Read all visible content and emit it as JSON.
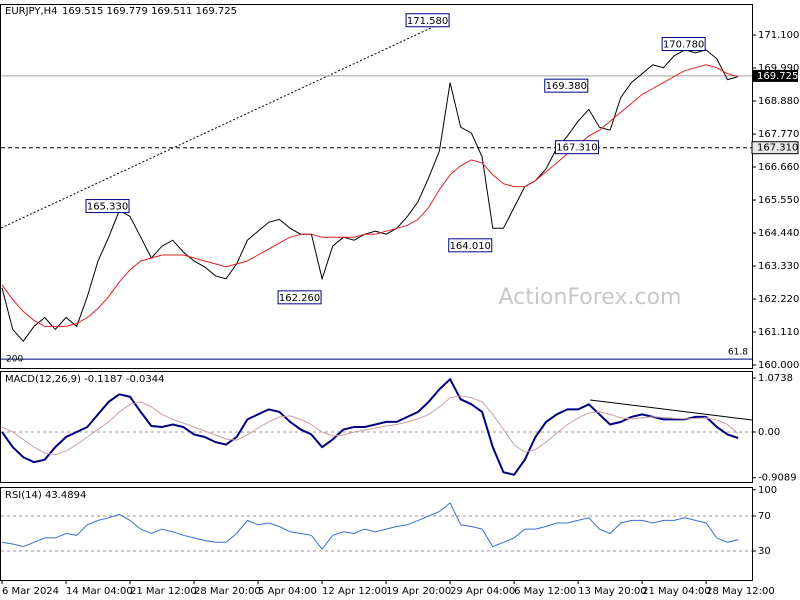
{
  "chart_data": [
    {
      "type": "line",
      "title": "EURJPY,H4",
      "subtitle": "169.515 169.779 169.511 169.725",
      "watermark": "ActionForex.com",
      "x": [
        0,
        1,
        2,
        3,
        4,
        5,
        6,
        7,
        8,
        9,
        10,
        11,
        12,
        13,
        14,
        15,
        16,
        17,
        18,
        19,
        20,
        21,
        22,
        23,
        24,
        25,
        26,
        27,
        28,
        29,
        30,
        31,
        32,
        33,
        34,
        35,
        36,
        37,
        38,
        39,
        40,
        41,
        42,
        43,
        44,
        45,
        46,
        47,
        48,
        49,
        50,
        51,
        52,
        53,
        54,
        55,
        56,
        57,
        58,
        59,
        60,
        61,
        62,
        63,
        64,
        65,
        66,
        67,
        68,
        69
      ],
      "xlim": [
        0,
        70.3
      ],
      "ylim": [
        159.9,
        172.11
      ],
      "yticks": [
        {
          "value": 171.1,
          "label": "171.100"
        },
        {
          "value": 169.99,
          "label": "169.990"
        },
        {
          "value": 168.88,
          "label": "168.880"
        },
        {
          "value": 167.77,
          "label": "167.770"
        },
        {
          "value": 166.66,
          "label": "166.660"
        },
        {
          "value": 165.55,
          "label": "165.550"
        },
        {
          "value": 164.44,
          "label": "164.440"
        },
        {
          "value": 163.33,
          "label": "163.330"
        },
        {
          "value": 162.22,
          "label": "162.220"
        },
        {
          "value": 161.11,
          "label": "161.110"
        },
        {
          "value": 160,
          "label": "160.000"
        }
      ],
      "series": [
        {
          "color": "#000000",
          "values": [
            162.6,
            161.2,
            160.8,
            161.3,
            161.6,
            161.2,
            161.6,
            161.3,
            162.3,
            163.5,
            164.3,
            165.2,
            165.0,
            164.3,
            163.6,
            164.0,
            164.2,
            163.8,
            163.5,
            163.3,
            163.0,
            162.9,
            163.4,
            164.2,
            164.5,
            164.8,
            164.9,
            164.6,
            164.4,
            164.4,
            162.9,
            164.0,
            164.3,
            164.2,
            164.4,
            164.5,
            164.4,
            164.6,
            165.0,
            165.5,
            166.3,
            167.2,
            169.5,
            168.0,
            167.8,
            167.0,
            164.6,
            164.6,
            165.3,
            166.0,
            166.2,
            166.6,
            167.3,
            167.7,
            168.2,
            168.6,
            168.0,
            167.9,
            169.0,
            169.5,
            169.8,
            170.1,
            170.0,
            170.4,
            170.6,
            170.5,
            170.6,
            170.3,
            169.6,
            169.7
          ]
        },
        {
          "color": "#e02020",
          "values": [
            162.7,
            162.2,
            161.8,
            161.5,
            161.3,
            161.3,
            161.3,
            161.4,
            161.6,
            161.9,
            162.3,
            162.8,
            163.2,
            163.5,
            163.6,
            163.7,
            163.7,
            163.7,
            163.6,
            163.5,
            163.4,
            163.3,
            163.4,
            163.5,
            163.7,
            163.9,
            164.1,
            164.3,
            164.4,
            164.4,
            164.3,
            164.3,
            164.3,
            164.3,
            164.4,
            164.4,
            164.5,
            164.6,
            164.7,
            164.9,
            165.3,
            165.9,
            166.4,
            166.7,
            166.9,
            166.8,
            166.4,
            166.1,
            166.0,
            166.0,
            166.2,
            166.5,
            166.8,
            167.1,
            167.4,
            167.7,
            167.9,
            168.2,
            168.5,
            168.8,
            169.1,
            169.3,
            169.5,
            169.7,
            169.9,
            170.0,
            170.1,
            170.0,
            169.8,
            169.7
          ]
        }
      ],
      "annotations": [
        {
          "value": 171.58,
          "label": "171.580",
          "x": 42
        },
        {
          "value": 170.78,
          "label": "170.780",
          "x": 66
        },
        {
          "value": 169.38,
          "label": "169.380",
          "x": 55
        },
        {
          "value": 167.31,
          "label": "167.310",
          "x": 56
        },
        {
          "value": 165.33,
          "label": "165.330",
          "x": 12
        },
        {
          "value": 164.01,
          "label": "164.010",
          "x": 46
        },
        {
          "value": 162.26,
          "label": "162.260",
          "x": 30
        }
      ],
      "last_price": {
        "value": 169.725,
        "label": "169.725"
      },
      "hline": {
        "value": 167.31,
        "label": "167.310"
      },
      "fib_line": {
        "value": 160.2,
        "labels": [
          "200",
          "61.8"
        ]
      }
    },
    {
      "type": "line",
      "title": "MACD(12,26,9) -0.1187 -0.0344",
      "x": [
        0,
        1,
        2,
        3,
        4,
        5,
        6,
        7,
        8,
        9,
        10,
        11,
        12,
        13,
        14,
        15,
        16,
        17,
        18,
        19,
        20,
        21,
        22,
        23,
        24,
        25,
        26,
        27,
        28,
        29,
        30,
        31,
        32,
        33,
        34,
        35,
        36,
        37,
        38,
        39,
        40,
        41,
        42,
        43,
        44,
        45,
        46,
        47,
        48,
        49,
        50,
        51,
        52,
        53,
        54,
        55,
        56,
        57,
        58,
        59,
        60,
        61,
        62,
        63,
        64,
        65,
        66,
        67,
        68,
        69
      ],
      "xlim": [
        0,
        70.3
      ],
      "ylim": [
        -0.994,
        1.193
      ],
      "yticks": [
        1.0738,
        {
          "value": 0,
          "label": "0.00"
        },
        -0.9089
      ],
      "grid": true,
      "series": [
        {
          "color": "#000080",
          "values": [
            0.0,
            -0.3,
            -0.5,
            -0.6,
            -0.55,
            -0.3,
            -0.1,
            0.0,
            0.1,
            0.35,
            0.6,
            0.75,
            0.7,
            0.4,
            0.12,
            0.1,
            0.15,
            0.1,
            -0.05,
            -0.1,
            -0.2,
            -0.25,
            -0.1,
            0.25,
            0.35,
            0.45,
            0.4,
            0.2,
            0.05,
            -0.05,
            -0.3,
            -0.15,
            0.05,
            0.1,
            0.1,
            0.15,
            0.2,
            0.2,
            0.3,
            0.4,
            0.6,
            0.85,
            1.05,
            0.65,
            0.55,
            0.4,
            -0.3,
            -0.8,
            -0.85,
            -0.55,
            -0.1,
            0.2,
            0.35,
            0.45,
            0.45,
            0.55,
            0.35,
            0.15,
            0.2,
            0.3,
            0.35,
            0.3,
            0.25,
            0.25,
            0.25,
            0.3,
            0.3,
            0.1,
            -0.05,
            -0.12
          ]
        },
        {
          "color": "#c9a0a0",
          "values": [
            0.1,
            0.0,
            -0.15,
            -0.3,
            -0.42,
            -0.45,
            -0.38,
            -0.25,
            -0.1,
            0.05,
            0.2,
            0.4,
            0.55,
            0.6,
            0.5,
            0.35,
            0.25,
            0.18,
            0.1,
            0.02,
            -0.06,
            -0.14,
            -0.16,
            -0.06,
            0.08,
            0.2,
            0.3,
            0.32,
            0.25,
            0.15,
            0.0,
            -0.08,
            -0.06,
            0.0,
            0.04,
            0.08,
            0.12,
            0.15,
            0.2,
            0.26,
            0.35,
            0.5,
            0.68,
            0.72,
            0.68,
            0.6,
            0.35,
            0.05,
            -0.25,
            -0.4,
            -0.35,
            -0.2,
            -0.02,
            0.15,
            0.28,
            0.38,
            0.4,
            0.35,
            0.28,
            0.26,
            0.28,
            0.3,
            0.29,
            0.27,
            0.26,
            0.27,
            0.28,
            0.24,
            0.15,
            -0.03
          ]
        }
      ]
    },
    {
      "type": "line",
      "title": "RSI(14) 43.4894",
      "x": [
        0,
        1,
        2,
        3,
        4,
        5,
        6,
        7,
        8,
        9,
        10,
        11,
        12,
        13,
        14,
        15,
        16,
        17,
        18,
        19,
        20,
        21,
        22,
        23,
        24,
        25,
        26,
        27,
        28,
        29,
        30,
        31,
        32,
        33,
        34,
        35,
        36,
        37,
        38,
        39,
        40,
        41,
        42,
        43,
        44,
        45,
        46,
        47,
        48,
        49,
        50,
        51,
        52,
        53,
        54,
        55,
        56,
        57,
        58,
        59,
        60,
        61,
        62,
        63,
        64,
        65,
        66,
        67,
        68,
        69
      ],
      "xlim": [
        0,
        70.3
      ],
      "ylim": [
        -3.1,
        102
      ],
      "yticks": [
        100,
        70,
        30
      ],
      "grid": true,
      "xticks": [
        {
          "value": 0,
          "label": "6 Mar 2024"
        },
        {
          "value": 6,
          "label": "14 Mar 04:00"
        },
        {
          "value": 12,
          "label": "21 Mar 12:00"
        },
        {
          "value": 18,
          "label": "28 Mar 20:00"
        },
        {
          "value": 24,
          "label": "5 Apr 04:00"
        },
        {
          "value": 30,
          "label": "12 Apr 12:00"
        },
        {
          "value": 36,
          "label": "19 Apr 20:00"
        },
        {
          "value": 42,
          "label": "29 Apr 04:00"
        },
        {
          "value": 48,
          "label": "6 May 12:00"
        },
        {
          "value": 54,
          "label": "13 May 20:00"
        },
        {
          "value": 60,
          "label": "21 May 04:00"
        },
        {
          "value": 66,
          "label": "28 May 12:00"
        }
      ],
      "series": [
        {
          "color": "#3b6fd0",
          "values": [
            40,
            38,
            35,
            40,
            45,
            45,
            50,
            48,
            60,
            65,
            68,
            72,
            65,
            55,
            50,
            55,
            52,
            48,
            45,
            42,
            40,
            40,
            50,
            65,
            60,
            62,
            58,
            52,
            50,
            48,
            32,
            48,
            52,
            50,
            55,
            52,
            55,
            58,
            60,
            65,
            70,
            75,
            85,
            60,
            58,
            55,
            35,
            40,
            45,
            55,
            55,
            58,
            62,
            62,
            65,
            68,
            55,
            50,
            62,
            65,
            65,
            62,
            65,
            65,
            68,
            65,
            62,
            45,
            40,
            43
          ]
        }
      ]
    }
  ]
}
